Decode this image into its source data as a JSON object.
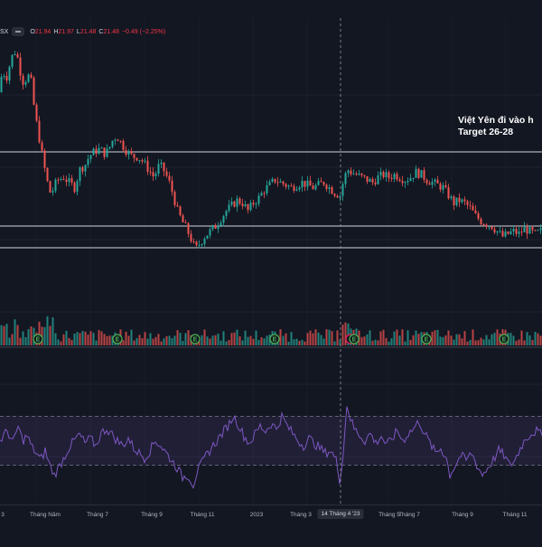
{
  "legend": {
    "symbol": "SX",
    "open_label": "O",
    "open_value": "21.94",
    "high_label": "H",
    "high_value": "21.97",
    "low_label": "L",
    "low_value": "21.48",
    "close_label": "C",
    "close_value": "21.48",
    "change": "−0.49 (−2.25%)"
  },
  "annotation": {
    "line1": "Việt Yên đi vào h",
    "line2": "Target 26-28"
  },
  "colors": {
    "background": "#131722",
    "up": "#26a69a",
    "down": "#ef5350",
    "rsi": "#7e57c2",
    "rsi_band": "#7e57c2",
    "level_lines": "#d1d4dc",
    "earnings_marker": "#4caf50"
  },
  "chart_data": {
    "type": "candlestick",
    "title": "",
    "symbol": "SX",
    "horizontal_levels": [
      "",
      "",
      ""
    ],
    "x_tick_labels": [
      "3",
      "Tháng Năm",
      "Tháng 7",
      "Tháng 9",
      "Tháng 11",
      "2023",
      "Tháng 3",
      "14 Tháng 4 '23",
      "Tháng 5",
      "Tháng 7",
      "Tháng 9",
      "Tháng 11"
    ],
    "highlighted_x_label": "14 Tháng 4 '23",
    "price_shape": [
      [
        0,
        0.8
      ],
      [
        4,
        0.88
      ],
      [
        9,
        0.86
      ],
      [
        14,
        0.93
      ],
      [
        17,
        0.96
      ],
      [
        20,
        0.95
      ],
      [
        24,
        0.88
      ],
      [
        28,
        0.83
      ],
      [
        32,
        0.87
      ],
      [
        36,
        0.84
      ],
      [
        40,
        0.72
      ],
      [
        43,
        0.66
      ],
      [
        46,
        0.6
      ],
      [
        50,
        0.52
      ],
      [
        54,
        0.45
      ],
      [
        58,
        0.4
      ],
      [
        62,
        0.44
      ],
      [
        66,
        0.46
      ],
      [
        72,
        0.47
      ],
      [
        78,
        0.45
      ],
      [
        84,
        0.43
      ],
      [
        90,
        0.5
      ],
      [
        96,
        0.52
      ],
      [
        100,
        0.55
      ],
      [
        106,
        0.57
      ],
      [
        112,
        0.58
      ],
      [
        118,
        0.56
      ],
      [
        122,
        0.58
      ],
      [
        127,
        0.62
      ],
      [
        131,
        0.63
      ],
      [
        136,
        0.6
      ],
      [
        142,
        0.57
      ],
      [
        148,
        0.55
      ],
      [
        154,
        0.55
      ],
      [
        160,
        0.53
      ],
      [
        166,
        0.5
      ],
      [
        172,
        0.47
      ],
      [
        178,
        0.52
      ],
      [
        184,
        0.49
      ],
      [
        190,
        0.44
      ],
      [
        194,
        0.39
      ],
      [
        198,
        0.34
      ],
      [
        203,
        0.3
      ],
      [
        208,
        0.27
      ],
      [
        213,
        0.23
      ],
      [
        218,
        0.19
      ],
      [
        222,
        0.21
      ],
      [
        228,
        0.24
      ],
      [
        234,
        0.26
      ],
      [
        240,
        0.28
      ],
      [
        246,
        0.31
      ],
      [
        252,
        0.34
      ],
      [
        258,
        0.36
      ],
      [
        264,
        0.38
      ],
      [
        270,
        0.37
      ],
      [
        276,
        0.34
      ],
      [
        282,
        0.37
      ],
      [
        288,
        0.39
      ],
      [
        294,
        0.42
      ],
      [
        300,
        0.44
      ],
      [
        306,
        0.46
      ],
      [
        312,
        0.45
      ],
      [
        318,
        0.44
      ],
      [
        324,
        0.43
      ],
      [
        330,
        0.44
      ],
      [
        336,
        0.45
      ],
      [
        342,
        0.44
      ],
      [
        348,
        0.43
      ],
      [
        354,
        0.44
      ],
      [
        360,
        0.45
      ],
      [
        366,
        0.43
      ],
      [
        372,
        0.41
      ],
      [
        378,
        0.4
      ],
      [
        382,
        0.46
      ],
      [
        386,
        0.5
      ],
      [
        390,
        0.49
      ],
      [
        396,
        0.48
      ],
      [
        402,
        0.47
      ],
      [
        408,
        0.46
      ],
      [
        414,
        0.45
      ],
      [
        420,
        0.47
      ],
      [
        426,
        0.48
      ],
      [
        432,
        0.47
      ],
      [
        438,
        0.48
      ],
      [
        444,
        0.47
      ],
      [
        450,
        0.46
      ],
      [
        456,
        0.47
      ],
      [
        462,
        0.49
      ],
      [
        468,
        0.48
      ],
      [
        474,
        0.46
      ],
      [
        480,
        0.45
      ],
      [
        486,
        0.44
      ],
      [
        492,
        0.43
      ],
      [
        498,
        0.4
      ],
      [
        504,
        0.37
      ],
      [
        510,
        0.38
      ],
      [
        516,
        0.37
      ],
      [
        522,
        0.35
      ],
      [
        528,
        0.32
      ],
      [
        534,
        0.3
      ],
      [
        540,
        0.29
      ],
      [
        546,
        0.28
      ],
      [
        552,
        0.26
      ],
      [
        558,
        0.24
      ],
      [
        564,
        0.25
      ],
      [
        570,
        0.26
      ],
      [
        576,
        0.25
      ],
      [
        582,
        0.27
      ],
      [
        588,
        0.26
      ],
      [
        594,
        0.25
      ],
      [
        600,
        0.26
      ]
    ],
    "earnings_markers_x": [
      42,
      130,
      216,
      304,
      392,
      472,
      558
    ],
    "dividend_markers_x": [
      388
    ],
    "rsi_band": {
      "upper": 70,
      "lower": 30
    },
    "rsi_shape": [
      [
        0,
        50
      ],
      [
        8,
        58
      ],
      [
        15,
        48
      ],
      [
        20,
        62
      ],
      [
        25,
        50
      ],
      [
        30,
        54
      ],
      [
        35,
        45
      ],
      [
        40,
        40
      ],
      [
        45,
        34
      ],
      [
        50,
        42
      ],
      [
        55,
        30
      ],
      [
        60,
        22
      ],
      [
        65,
        28
      ],
      [
        70,
        35
      ],
      [
        76,
        44
      ],
      [
        82,
        50
      ],
      [
        88,
        55
      ],
      [
        94,
        48
      ],
      [
        100,
        52
      ],
      [
        106,
        46
      ],
      [
        112,
        56
      ],
      [
        118,
        60
      ],
      [
        124,
        55
      ],
      [
        130,
        50
      ],
      [
        136,
        46
      ],
      [
        142,
        52
      ],
      [
        148,
        44
      ],
      [
        154,
        40
      ],
      [
        160,
        36
      ],
      [
        166,
        42
      ],
      [
        172,
        50
      ],
      [
        178,
        46
      ],
      [
        184,
        40
      ],
      [
        190,
        34
      ],
      [
        196,
        28
      ],
      [
        202,
        20
      ],
      [
        208,
        22
      ],
      [
        214,
        14
      ],
      [
        218,
        24
      ],
      [
        224,
        32
      ],
      [
        230,
        40
      ],
      [
        236,
        46
      ],
      [
        242,
        52
      ],
      [
        248,
        58
      ],
      [
        254,
        64
      ],
      [
        258,
        70
      ],
      [
        262,
        66
      ],
      [
        266,
        60
      ],
      [
        270,
        54
      ],
      [
        276,
        48
      ],
      [
        282,
        55
      ],
      [
        288,
        62
      ],
      [
        294,
        58
      ],
      [
        300,
        64
      ],
      [
        306,
        60
      ],
      [
        312,
        70
      ],
      [
        318,
        62
      ],
      [
        324,
        56
      ],
      [
        330,
        50
      ],
      [
        336,
        46
      ],
      [
        342,
        52
      ],
      [
        348,
        48
      ],
      [
        354,
        44
      ],
      [
        360,
        40
      ],
      [
        366,
        42
      ],
      [
        372,
        34
      ],
      [
        376,
        18
      ],
      [
        380,
        40
      ],
      [
        384,
        80
      ],
      [
        388,
        68
      ],
      [
        392,
        60
      ],
      [
        398,
        55
      ],
      [
        404,
        50
      ],
      [
        410,
        56
      ],
      [
        416,
        48
      ],
      [
        422,
        54
      ],
      [
        428,
        46
      ],
      [
        434,
        52
      ],
      [
        440,
        58
      ],
      [
        446,
        50
      ],
      [
        452,
        56
      ],
      [
        458,
        60
      ],
      [
        464,
        66
      ],
      [
        470,
        56
      ],
      [
        476,
        48
      ],
      [
        482,
        40
      ],
      [
        488,
        44
      ],
      [
        494,
        36
      ],
      [
        498,
        22
      ],
      [
        504,
        30
      ],
      [
        510,
        38
      ],
      [
        516,
        34
      ],
      [
        522,
        40
      ],
      [
        528,
        30
      ],
      [
        534,
        22
      ],
      [
        540,
        28
      ],
      [
        546,
        34
      ],
      [
        552,
        42
      ],
      [
        558,
        38
      ],
      [
        564,
        30
      ],
      [
        570,
        34
      ],
      [
        576,
        44
      ],
      [
        582,
        52
      ],
      [
        588,
        56
      ],
      [
        594,
        58
      ],
      [
        600,
        54
      ]
    ]
  }
}
